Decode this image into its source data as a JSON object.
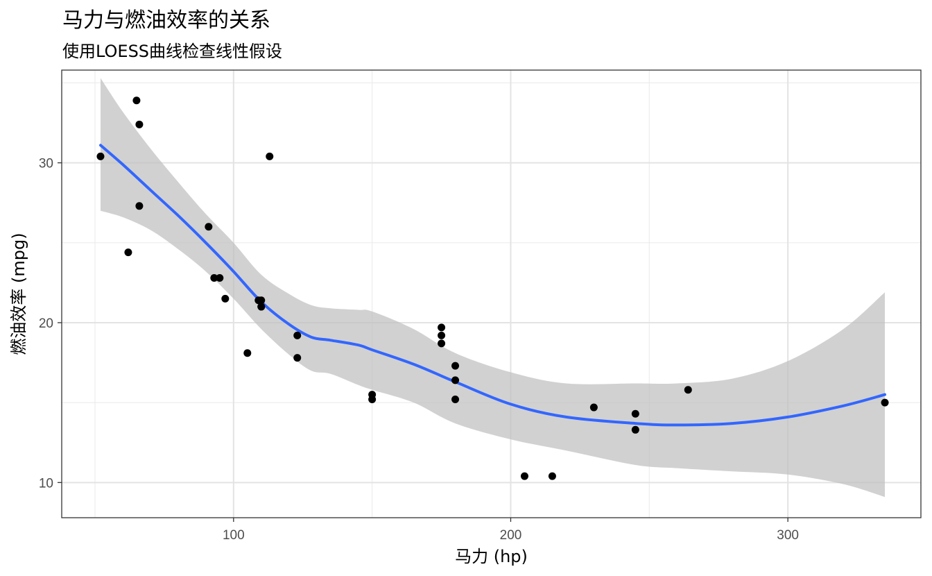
{
  "chart_data": {
    "type": "scatter",
    "title": "马力与燃油效率的关系",
    "subtitle": "使用LOESS曲线检查线性假设",
    "xlabel": "马力 (hp)",
    "ylabel": "燃油效率 (mpg)",
    "xlim": [
      38,
      348
    ],
    "ylim": [
      7.8,
      35.8
    ],
    "x_ticks": [
      100,
      200,
      300
    ],
    "y_ticks": [
      10,
      20,
      30
    ],
    "grid": true,
    "colors": {
      "points": "#000000",
      "smooth_line": "#3366ff",
      "ribbon": "#bfbfbf"
    },
    "points": [
      {
        "x": 110,
        "y": 21.0
      },
      {
        "x": 110,
        "y": 21.0
      },
      {
        "x": 93,
        "y": 22.8
      },
      {
        "x": 110,
        "y": 21.4
      },
      {
        "x": 175,
        "y": 18.7
      },
      {
        "x": 105,
        "y": 18.1
      },
      {
        "x": 245,
        "y": 14.3
      },
      {
        "x": 62,
        "y": 24.4
      },
      {
        "x": 95,
        "y": 22.8
      },
      {
        "x": 123,
        "y": 19.2
      },
      {
        "x": 123,
        "y": 17.8
      },
      {
        "x": 180,
        "y": 16.4
      },
      {
        "x": 180,
        "y": 17.3
      },
      {
        "x": 180,
        "y": 15.2
      },
      {
        "x": 205,
        "y": 10.4
      },
      {
        "x": 215,
        "y": 10.4
      },
      {
        "x": 230,
        "y": 14.7
      },
      {
        "x": 66,
        "y": 32.4
      },
      {
        "x": 52,
        "y": 30.4
      },
      {
        "x": 65,
        "y": 33.9
      },
      {
        "x": 97,
        "y": 21.5
      },
      {
        "x": 150,
        "y": 15.5
      },
      {
        "x": 150,
        "y": 15.2
      },
      {
        "x": 245,
        "y": 13.3
      },
      {
        "x": 175,
        "y": 19.2
      },
      {
        "x": 66,
        "y": 27.3
      },
      {
        "x": 91,
        "y": 26.0
      },
      {
        "x": 113,
        "y": 30.4
      },
      {
        "x": 264,
        "y": 15.8
      },
      {
        "x": 175,
        "y": 19.7
      },
      {
        "x": 335,
        "y": 15.0
      },
      {
        "x": 109,
        "y": 21.4
      }
    ],
    "smooth": {
      "x": [
        52,
        60,
        70,
        80,
        90,
        100,
        110,
        120,
        128,
        135,
        145,
        150,
        165,
        180,
        200,
        220,
        245,
        260,
        280,
        300,
        320,
        335
      ],
      "y": [
        31.1,
        29.9,
        28.3,
        26.7,
        25.0,
        23.2,
        21.3,
        19.9,
        19.1,
        18.9,
        18.6,
        18.3,
        17.4,
        16.3,
        14.9,
        14.1,
        13.7,
        13.6,
        13.7,
        14.1,
        14.8,
        15.5
      ],
      "lower": [
        27.0,
        26.6,
        25.8,
        24.6,
        23.2,
        21.5,
        19.6,
        18.0,
        17.0,
        16.8,
        16.1,
        15.8,
        15.0,
        13.7,
        12.7,
        12.0,
        11.1,
        10.9,
        10.7,
        10.5,
        9.9,
        9.1
      ],
      "upper": [
        35.3,
        33.2,
        30.9,
        28.8,
        26.8,
        25.0,
        23.0,
        21.8,
        21.1,
        20.9,
        20.8,
        20.7,
        19.6,
        18.1,
        16.9,
        16.2,
        16.2,
        16.2,
        16.5,
        17.6,
        19.6,
        21.9
      ]
    }
  }
}
